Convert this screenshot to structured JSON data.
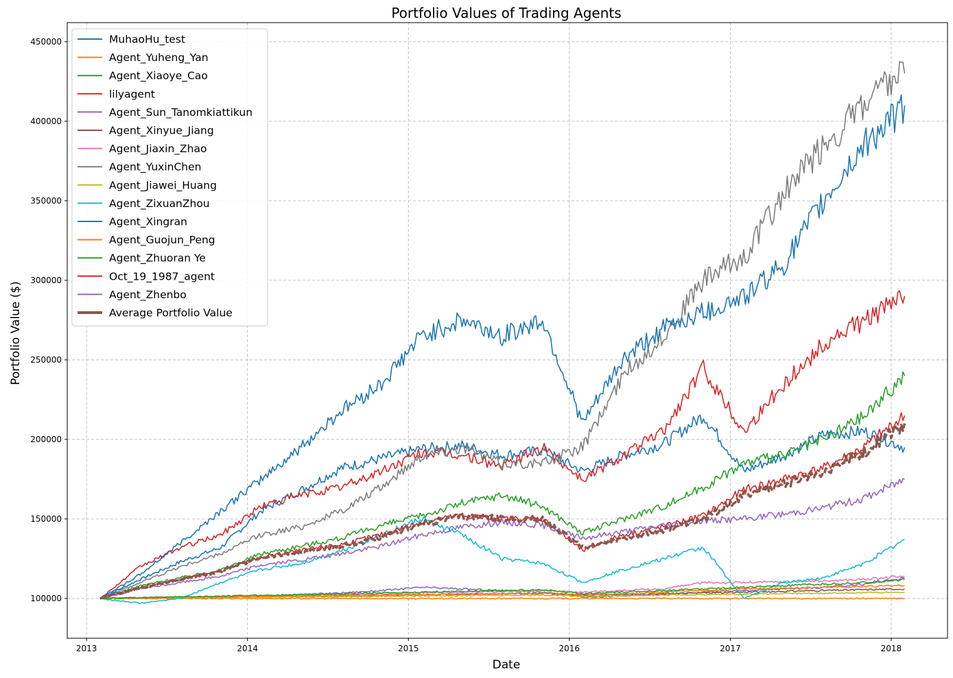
{
  "chart_data": {
    "type": "line",
    "title": "Portfolio Values of Trading Agents",
    "xlabel": "Date",
    "ylabel": "Portfolio Value ($)",
    "x_ticks": [
      "2013",
      "2014",
      "2015",
      "2016",
      "2017",
      "2018"
    ],
    "y_ticks": [
      "100000",
      "150000",
      "200000",
      "250000",
      "300000",
      "350000",
      "400000",
      "450000"
    ],
    "xlim": [
      2012.88,
      2018.35
    ],
    "ylim": [
      75000,
      462000
    ],
    "grid": true,
    "legend_position": "upper-left",
    "dates": [
      "2013-02",
      "2013-05",
      "2013-08",
      "2013-11",
      "2014-02",
      "2014-05",
      "2014-08",
      "2014-11",
      "2015-02",
      "2015-05",
      "2015-08",
      "2015-11",
      "2016-02",
      "2016-05",
      "2016-08",
      "2016-11",
      "2017-02",
      "2017-05",
      "2017-08",
      "2017-11",
      "2018-02"
    ],
    "series": [
      {
        "name": "MuhaoHu_test",
        "color": "#1f77b4",
        "values": [
          100000,
          112000,
          123000,
          132000,
          155000,
          168000,
          182000,
          188000,
          194000,
          196000,
          190000,
          193000,
          180000,
          190000,
          197000,
          215000,
          180000,
          190000,
          203000,
          205000,
          195000
        ]
      },
      {
        "name": "Agent_Yuheng_Yan",
        "color": "#ff7f0e",
        "values": [
          100000,
          100000,
          100000,
          100000,
          100000,
          100000,
          100000,
          100000,
          100000,
          100000,
          100000,
          100000,
          100000,
          100000,
          100000,
          100000,
          100000,
          100000,
          100000,
          100000,
          100000
        ]
      },
      {
        "name": "Agent_Xiaoye_Cao",
        "color": "#2ca02c",
        "values": [
          100000,
          108000,
          113000,
          118000,
          128000,
          133000,
          138000,
          146000,
          152000,
          160000,
          165000,
          158000,
          141000,
          150000,
          158000,
          170000,
          185000,
          190000,
          200000,
          215000,
          240000
        ]
      },
      {
        "name": "lilyagent",
        "color": "#d62728",
        "values": [
          100000,
          120000,
          132000,
          140000,
          158000,
          165000,
          170000,
          180000,
          192000,
          190000,
          183000,
          195000,
          175000,
          190000,
          205000,
          245000,
          205000,
          235000,
          260000,
          275000,
          290000
        ]
      },
      {
        "name": "Agent_Sun_Tanomkiattikun",
        "color": "#9467bd",
        "values": [
          100000,
          100500,
          100800,
          101000,
          101500,
          102500,
          103500,
          105000,
          107000,
          106000,
          105000,
          104000,
          101000,
          101500,
          102500,
          104000,
          105000,
          106000,
          107000,
          109000,
          113000
        ]
      },
      {
        "name": "Agent_Xinyue_Jiang",
        "color": "#8c564b",
        "values": [
          100000,
          100300,
          100600,
          100900,
          101200,
          101500,
          101800,
          102100,
          102400,
          102700,
          103000,
          103300,
          102000,
          102500,
          103000,
          103500,
          104000,
          104500,
          105000,
          105500,
          106000
        ]
      },
      {
        "name": "Agent_Jiaxin_Zhao",
        "color": "#e377c2",
        "values": [
          100000,
          100400,
          100800,
          101200,
          101600,
          102000,
          102500,
          103000,
          103500,
          104000,
          104500,
          105000,
          104000,
          105000,
          106000,
          110000,
          110000,
          110500,
          111000,
          112000,
          114000
        ]
      },
      {
        "name": "Agent_YuxinChen",
        "color": "#7f7f7f",
        "values": [
          100000,
          110000,
          120000,
          128000,
          140000,
          145000,
          155000,
          170000,
          190000,
          195000,
          185000,
          185000,
          195000,
          240000,
          265000,
          300000,
          315000,
          355000,
          385000,
          410000,
          430000
        ]
      },
      {
        "name": "Agent_Jiawei_Huang",
        "color": "#bcbd22",
        "values": [
          100000,
          100200,
          100400,
          100600,
          100800,
          101000,
          101200,
          101400,
          101600,
          101800,
          102000,
          102200,
          101500,
          101800,
          102100,
          102400,
          102700,
          103000,
          103300,
          103600,
          104000
        ]
      },
      {
        "name": "Agent_ZixuanZhou",
        "color": "#17becf",
        "values": [
          100000,
          97000,
          100000,
          110000,
          118000,
          122000,
          130000,
          140000,
          150000,
          140000,
          125000,
          122000,
          110000,
          118000,
          125000,
          132000,
          100000,
          110000,
          113000,
          122000,
          137000
        ]
      },
      {
        "name": "Agent_Xingran",
        "color": "#1f77b4",
        "values": [
          100000,
          115000,
          135000,
          155000,
          175000,
          195000,
          218000,
          235000,
          265000,
          275000,
          265000,
          275000,
          210000,
          250000,
          270000,
          280000,
          290000,
          310000,
          350000,
          385000,
          410000
        ]
      },
      {
        "name": "Agent_Guojun_Peng",
        "color": "#ff7f0e",
        "values": [
          100000,
          100300,
          100600,
          100900,
          101200,
          101500,
          101800,
          102100,
          102400,
          102700,
          103000,
          103300,
          102500,
          103000,
          104000,
          105000,
          106000,
          106500,
          107000,
          107500,
          108000
        ]
      },
      {
        "name": "Agent_Zhuoran Ye",
        "color": "#2ca02c",
        "values": [
          100000,
          100500,
          101000,
          101500,
          102000,
          102500,
          103000,
          103500,
          104000,
          104500,
          105000,
          105500,
          103000,
          104000,
          105000,
          106000,
          107000,
          108000,
          109000,
          110000,
          112000
        ]
      },
      {
        "name": "Oct_19_1987_agent",
        "color": "#d62728",
        "values": [
          100000,
          107000,
          112000,
          117000,
          126000,
          130000,
          134000,
          140000,
          148000,
          152000,
          150000,
          150000,
          130000,
          140000,
          145000,
          152000,
          168000,
          175000,
          182000,
          195000,
          215000
        ]
      },
      {
        "name": "Agent_Zhenbo",
        "color": "#9467bd",
        "values": [
          100000,
          106000,
          110000,
          114000,
          121000,
          124000,
          128000,
          133000,
          140000,
          145000,
          148000,
          146000,
          138000,
          142000,
          146000,
          149000,
          150000,
          153000,
          157000,
          163000,
          175000
        ]
      },
      {
        "name": "Average Portfolio Value",
        "color": "#8c564b",
        "thick": true,
        "values": [
          100000,
          106500,
          112000,
          117000,
          126000,
          129000,
          133000,
          138000,
          147000,
          152000,
          150000,
          150000,
          132000,
          138000,
          143000,
          150000,
          165000,
          172000,
          180000,
          192000,
          210000
        ]
      }
    ]
  }
}
